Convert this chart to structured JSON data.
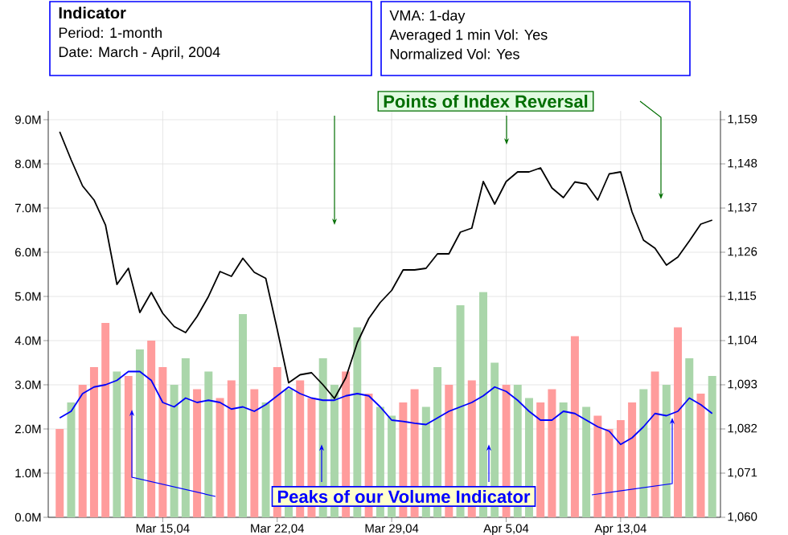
{
  "chart_data": {
    "type": "bar",
    "title": "Indicator",
    "annotations": [
      "Period: 1-month",
      "Date: March - April, 2004",
      "VMA: 1-day",
      "Averaged 1 min Vol: Yes",
      "Normalized Vol: Yes",
      "Points of Index Reversal",
      {
        "text": "Peaks of our Volume Indicator",
        "y": 1.65
      }
    ],
    "categories": [
      null,
      null,
      null,
      null,
      null,
      null,
      null,
      null,
      null,
      "Mar 15,04",
      null,
      null,
      null,
      null,
      null,
      null,
      null,
      null,
      null,
      "Mar 22,04",
      null,
      null,
      null,
      null,
      null,
      null,
      null,
      null,
      null,
      "Mar 29,04",
      null,
      null,
      null,
      null,
      null,
      null,
      null,
      null,
      null,
      "Apr 5,04",
      null,
      null,
      null,
      null,
      null,
      null,
      null,
      null,
      null,
      "Apr 13,04",
      null,
      null,
      null,
      null,
      null,
      null,
      null,
      null
    ],
    "ylim": [
      0,
      9.2
    ],
    "yticks": [
      {
        "value": 0,
        "label": "0.0M"
      },
      {
        "value": 1,
        "label": "1.0M"
      },
      {
        "value": 2,
        "label": "2.0M"
      },
      {
        "value": 3,
        "label": "3.0M"
      },
      {
        "value": 4,
        "label": "4.0M"
      },
      {
        "value": 5,
        "label": "5.0M"
      },
      {
        "value": 6,
        "label": "6.0M"
      },
      {
        "value": 7,
        "label": "7.0M"
      },
      {
        "value": 8,
        "label": "8.0M"
      },
      {
        "value": 9,
        "label": "9.0M"
      }
    ],
    "y2lim": [
      1060,
      1161.2
    ],
    "y2ticks": [
      {
        "value": 1060,
        "label": "1,060"
      },
      {
        "value": 1071,
        "label": "1,071"
      },
      {
        "value": 1082,
        "label": "1,082"
      },
      {
        "value": 1093,
        "label": "1,093"
      },
      {
        "value": 1104,
        "label": "1,104"
      },
      {
        "value": 1115,
        "label": "1,115"
      },
      {
        "value": 1126,
        "label": "1,126"
      },
      {
        "value": 1137,
        "label": "1,137"
      },
      {
        "value": 1148,
        "label": "1,148"
      },
      {
        "value": 1159,
        "label": "1,159"
      }
    ],
    "grid": true,
    "series": [
      {
        "values": [
          2.0,
          2.6,
          3.0,
          3.4,
          4.4,
          3.3,
          3.2,
          3.8,
          4.0,
          3.4,
          3.0,
          3.6,
          2.9,
          3.3,
          2.7,
          3.1,
          4.6,
          2.9,
          2.6,
          3.4,
          2.9,
          3.1,
          2.7,
          3.6,
          3.0,
          3.3,
          4.3,
          2.8,
          2.5,
          2.3,
          2.6,
          2.9,
          2.5,
          3.4,
          3.0,
          4.8,
          3.1,
          5.1,
          3.5,
          3.0,
          3.0,
          2.7,
          2.6,
          2.9,
          2.6,
          4.1,
          2.5,
          2.3,
          2.0,
          2.2,
          2.6,
          2.9,
          3.3,
          3.0,
          4.3,
          3.6,
          2.8,
          3.2
        ],
        "colors": [
          "#ff9c9c",
          "#aad6aa",
          "#ff9c9c",
          "#ff9c9c",
          "#ff9c9c",
          "#aad6aa",
          "#ff9c9c",
          "#aad6aa",
          "#ff9c9c",
          "#ff9c9c",
          "#aad6aa",
          "#aad6aa",
          "#ff9c9c",
          "#aad6aa",
          "#ff9c9c",
          "#ff9c9c",
          "#aad6aa",
          "#ff9c9c",
          "#aad6aa",
          "#ff9c9c",
          "#aad6aa",
          "#ff9c9c",
          "#ff9c9c",
          "#aad6aa",
          "#aad6aa",
          "#ff9c9c",
          "#aad6aa",
          "#ff9c9c",
          "#aad6aa",
          "#aad6aa",
          "#ff9c9c",
          "#ff9c9c",
          "#aad6aa",
          "#aad6aa",
          "#ff9c9c",
          "#aad6aa",
          "#ff9c9c",
          "#aad6aa",
          "#aad6aa",
          "#ff9c9c",
          "#aad6aa",
          "#aad6aa",
          "#ff9c9c",
          "#ff9c9c",
          "#aad6aa",
          "#ff9c9c",
          "#aad6aa",
          "#ff9c9c",
          "#ff9c9c",
          "#ff9c9c",
          "#ff9c9c",
          "#aad6aa",
          "#ff9c9c",
          "#aad6aa",
          "#ff9c9c",
          "#aad6aa",
          "#ff9c9c",
          "#aad6aa"
        ]
      },
      {
        "type": "line",
        "color": "#0000ff",
        "values": [
          2.25,
          2.4,
          2.8,
          2.95,
          3.0,
          3.1,
          3.3,
          3.3,
          3.1,
          2.6,
          2.5,
          2.7,
          2.6,
          2.65,
          2.6,
          2.45,
          2.5,
          2.4,
          2.55,
          2.75,
          2.95,
          2.8,
          2.7,
          2.65,
          2.65,
          2.75,
          2.8,
          2.75,
          2.5,
          2.2,
          2.17,
          2.13,
          2.1,
          2.25,
          2.4,
          2.5,
          2.6,
          2.75,
          2.95,
          2.85,
          2.65,
          2.4,
          2.2,
          2.2,
          2.4,
          2.35,
          2.2,
          2.05,
          1.95,
          1.65,
          1.8,
          2.05,
          2.35,
          2.3,
          2.4,
          2.7,
          2.55,
          2.35
        ]
      },
      {
        "type": "line",
        "axis": "y2",
        "color": "#000000",
        "values": [
          1156,
          1149,
          1142.5,
          1139,
          1132.8,
          1118,
          1122,
          1111,
          1116,
          1110.8,
          1107.5,
          1106,
          1110,
          1115,
          1121.2,
          1120,
          1124.5,
          1121,
          1119.5,
          1106.8,
          1093.5,
          1095.5,
          1096,
          1093,
          1089.6,
          1094.8,
          1103.5,
          1109.5,
          1113.5,
          1116.5,
          1121.6,
          1121.6,
          1122,
          1125.6,
          1125.6,
          1131,
          1132,
          1143.6,
          1138,
          1143.6,
          1146,
          1146,
          1147,
          1142,
          1139.6,
          1143.5,
          1143,
          1139,
          1145.5,
          1146,
          1136,
          1129,
          1127,
          1122.8,
          1124.8,
          1128.8,
          1133,
          1134
        ]
      }
    ]
  }
}
